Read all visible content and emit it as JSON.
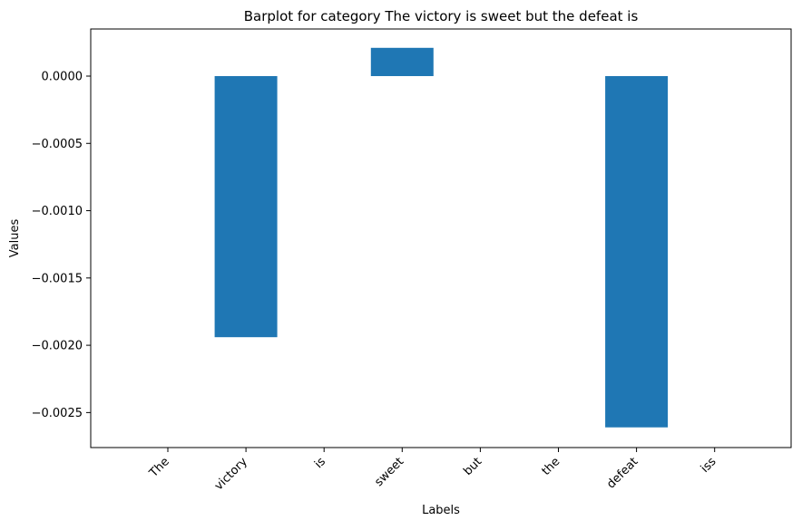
{
  "chart_data": {
    "type": "bar",
    "title": "Barplot for category The victory is sweet but the defeat is",
    "xlabel": "Labels",
    "ylabel": "Values",
    "categories": [
      "The",
      "victory",
      "is",
      "sweet",
      "but",
      "the",
      "defeat",
      "iss"
    ],
    "values": [
      0,
      -0.00194,
      0,
      0.00021,
      0,
      0,
      -0.00261,
      0
    ],
    "ylim": [
      -0.00276,
      0.00035
    ],
    "yticks": [
      0.0,
      -0.0005,
      -0.001,
      -0.0015,
      -0.002,
      -0.0025
    ],
    "ytick_labels": [
      "0.0000",
      "−0.0005",
      "−0.0010",
      "−0.0015",
      "−0.0020",
      "−0.0025"
    ],
    "grid": false,
    "bar_color": "#1f77b4"
  }
}
